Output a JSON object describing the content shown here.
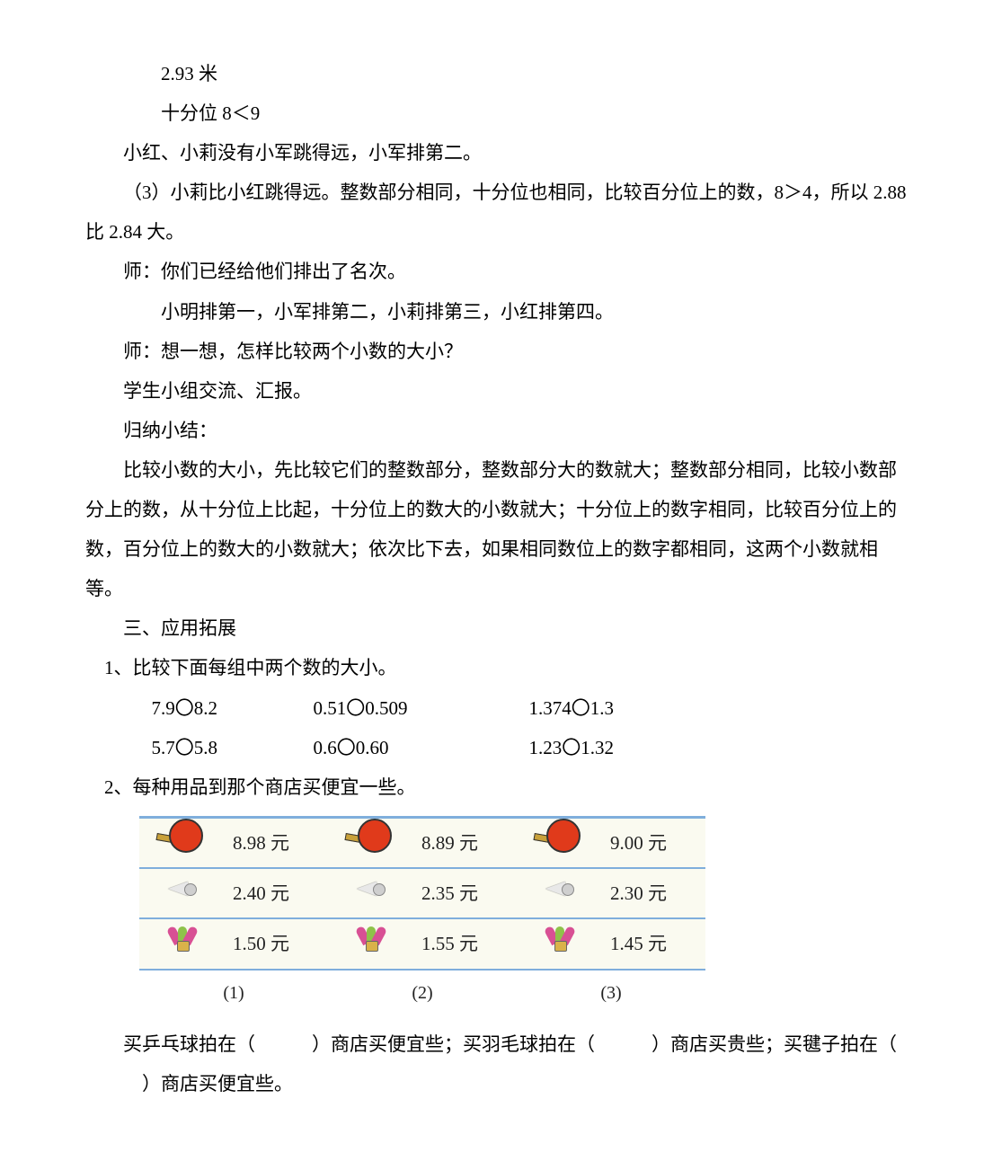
{
  "lines": {
    "l1": "2.93 米",
    "l2": "十分位 8＜9",
    "l3": "小红、小莉没有小军跳得远，小军排第二。",
    "l4": "（3）小莉比小红跳得远。整数部分相同，十分位也相同，比较百分位上的数，8＞4，所以 2.88 比 2.84 大。",
    "l5": "师：你们已经给他们排出了名次。",
    "l6": "小明排第一，小军排第二，小莉排第三，小红排第四。",
    "l7": "师：想一想，怎样比较两个小数的大小？",
    "l8": "学生小组交流、汇报。",
    "l9": "归纳小结：",
    "l10": "比较小数的大小，先比较它们的整数部分，整数部分大的数就大；整数部分相同，比较小数部分上的数，从十分位上比起，十分位上的数大的小数就大；十分位上的数字相同，比较百分位上的数，百分位上的数大的小数就大；依次比下去，如果相同数位上的数字都相同，这两个小数就相等。",
    "h3": "三、应用拓展",
    "q1": "1、比较下面每组中两个数的大小。",
    "q2": "2、每种用品到那个商店买便宜一些。"
  },
  "exercises": {
    "row1": [
      "7.9〇8.2",
      "0.51〇0.509",
      "1.374〇1.3"
    ],
    "row2": [
      "5.7〇5.8",
      "0.6〇0.60",
      "1.23〇1.32"
    ]
  },
  "priceTable": {
    "currency": "元",
    "stores": [
      {
        "label": "(1)",
        "paddle": "8.98",
        "shuttle": "2.40",
        "jianzi": "1.50"
      },
      {
        "label": "(2)",
        "paddle": "8.89",
        "shuttle": "2.35",
        "jianzi": "1.55"
      },
      {
        "label": "(3)",
        "paddle": "9.00",
        "shuttle": "2.30",
        "jianzi": "1.45"
      }
    ]
  },
  "fill": {
    "text1": "买乒乓球拍在（",
    "text2": "）商店买便宜些；买羽毛球拍在（",
    "text3": "）商店买贵些；买毽子拍在（",
    "text4": "）商店买便宜些。"
  },
  "style": {
    "page_bg": "#ffffff",
    "text_color": "#000000",
    "font_size_pt": 16,
    "line_height": 2.1,
    "table_bg": "#fafaf0",
    "table_rule_color": "#7faedc",
    "paddle_color": "#e03a1b",
    "handle_color": "#c9a13a",
    "feather_colors": [
      "#d85094",
      "#8fc24a",
      "#d85094"
    ]
  }
}
